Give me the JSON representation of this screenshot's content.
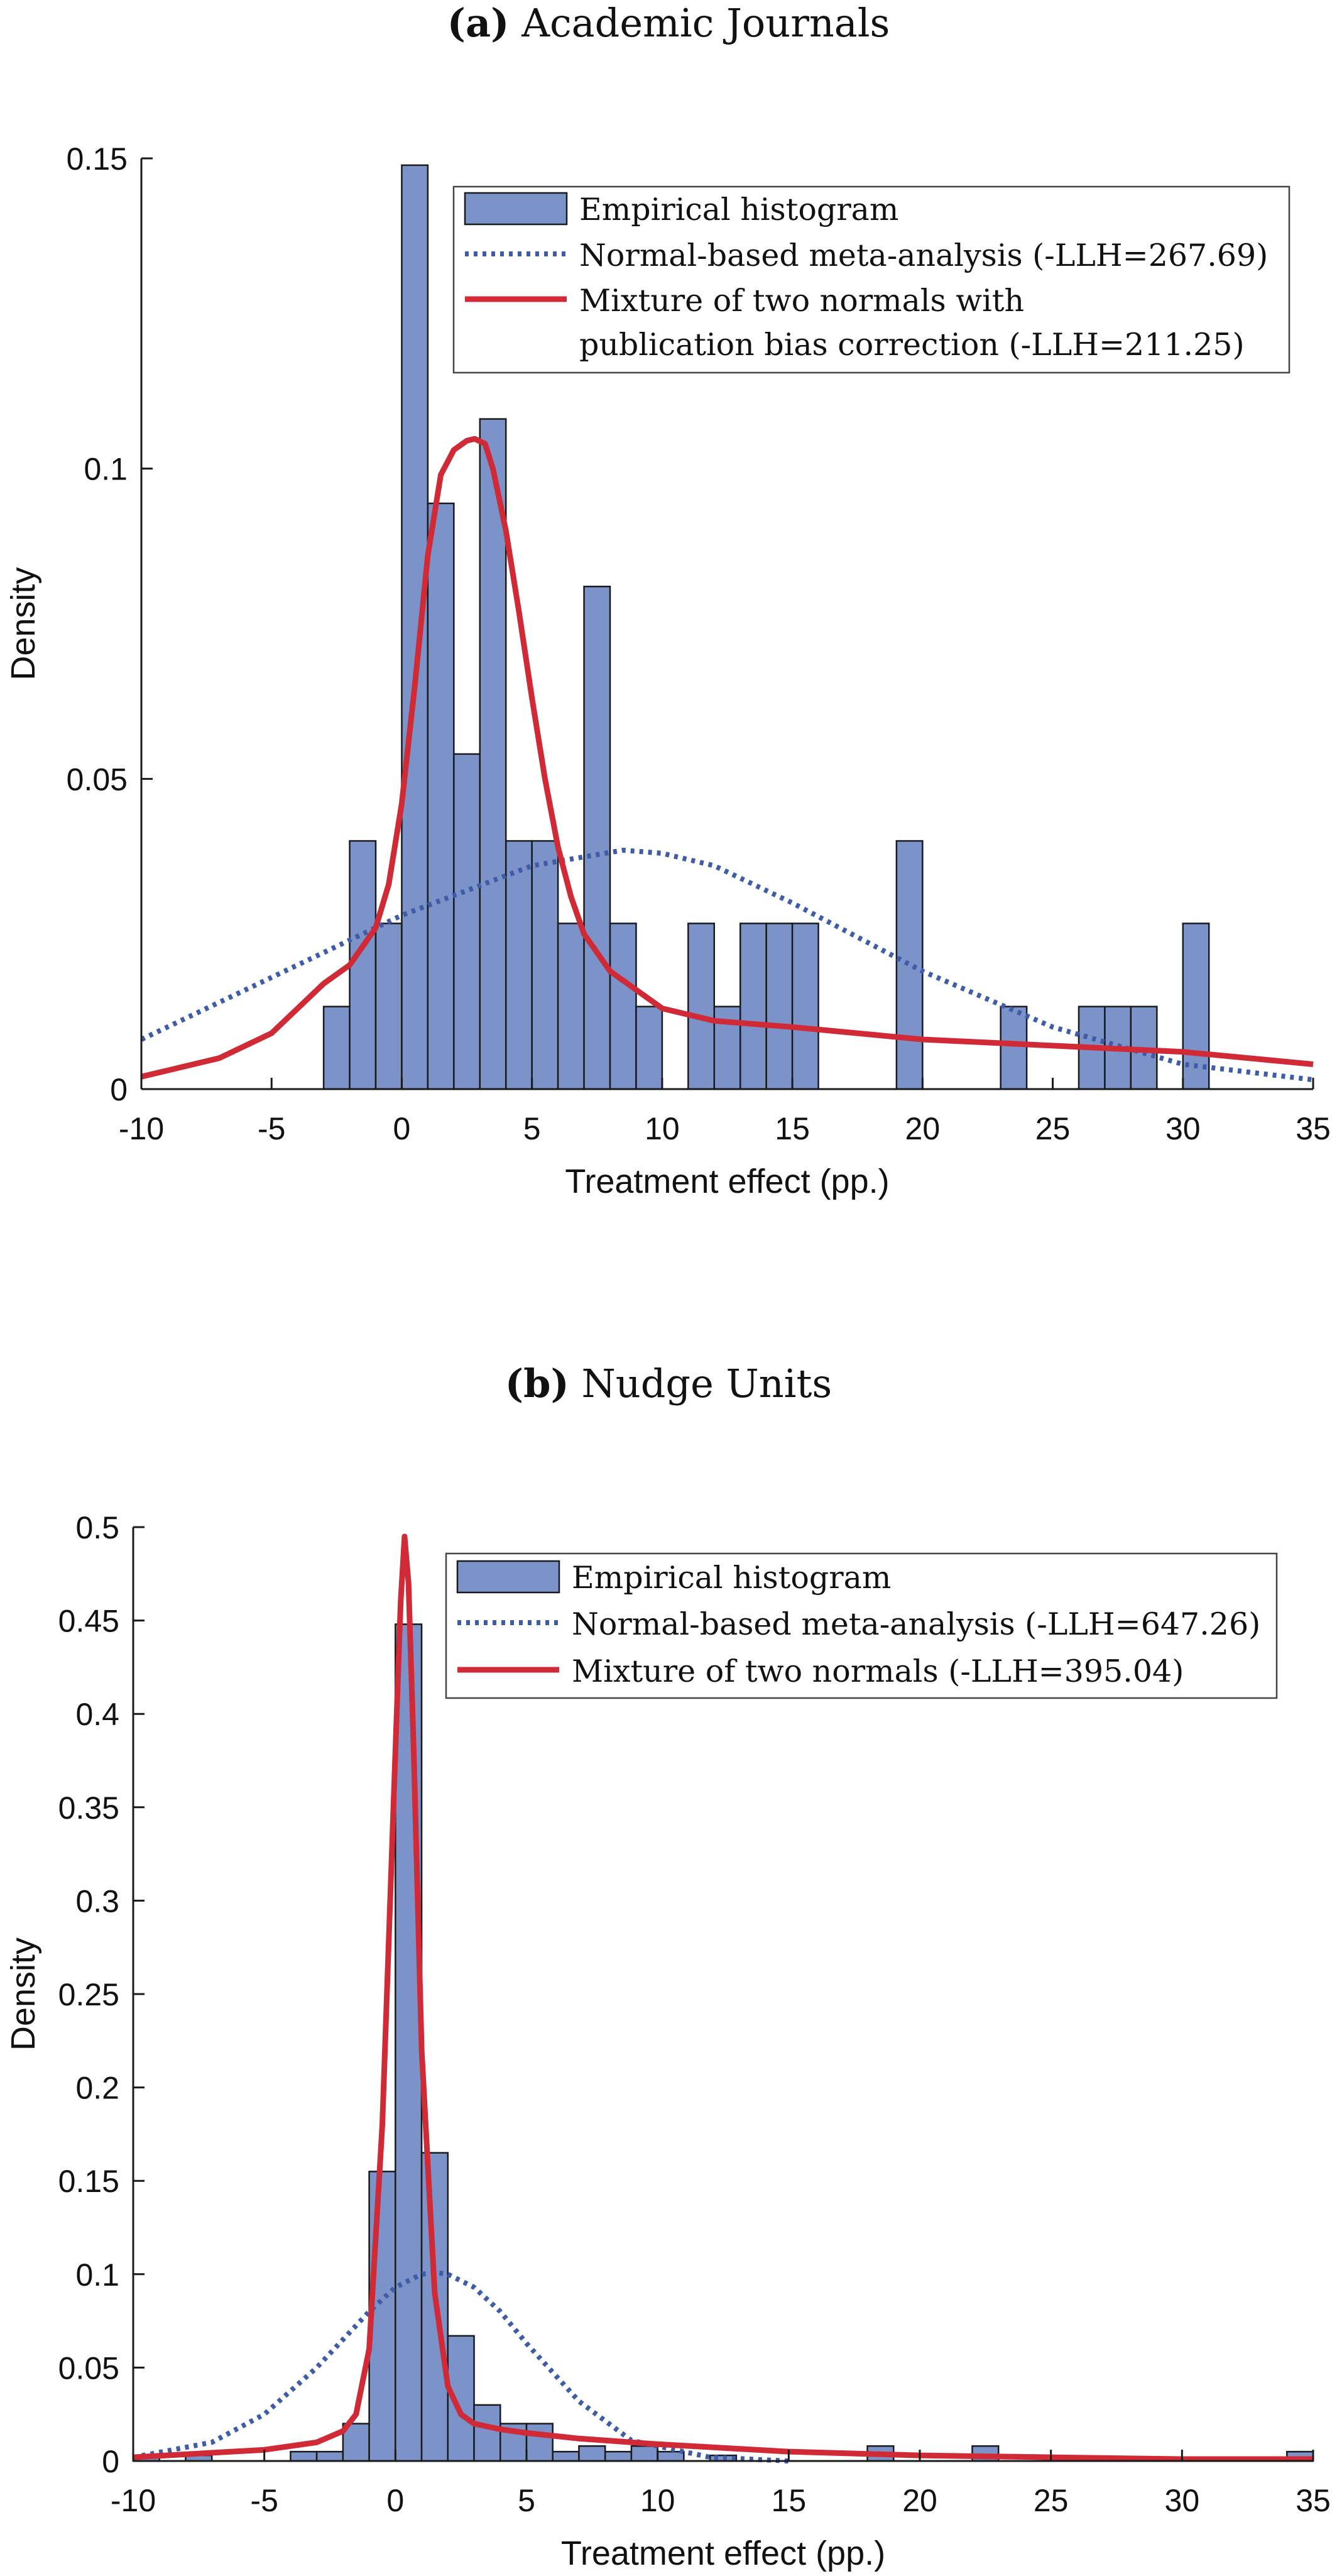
{
  "chart_data": [
    {
      "panel": "a",
      "type": "bar",
      "title_tag": "(a)",
      "title": "Academic Journals",
      "xlabel": "Treatment effect (pp.)",
      "ylabel": "Density",
      "xlim": [
        -10,
        35
      ],
      "ylim": [
        0,
        0.15
      ],
      "xticks": [
        -10,
        -5,
        0,
        5,
        10,
        15,
        20,
        25,
        30,
        35
      ],
      "xtick_labels": [
        "-10",
        "-5",
        "0",
        "5",
        "10",
        "15",
        "20",
        "25",
        "30",
        "35"
      ],
      "yticks": [
        0,
        0.05,
        0.1,
        0.15
      ],
      "ytick_labels": [
        "0",
        "0.05",
        "0.1",
        "0.15"
      ],
      "legend": [
        "Empirical histogram",
        "Normal-based meta-analysis (-LLH=267.69)",
        "Mixture of two normals with",
        "publication bias correction (-LLH=211.25)"
      ],
      "legend_position": "top-right",
      "colors": {
        "bars": "#7b93c9",
        "normal": "#3f5ca8",
        "mixture": "#d02a36"
      },
      "histogram": {
        "bin_width": 1,
        "bins": [
          {
            "x0": -3,
            "value": 0.0133
          },
          {
            "x0": -2,
            "value": 0.04
          },
          {
            "x0": -1,
            "value": 0.0267
          },
          {
            "x0": 0,
            "value": 0.1489
          },
          {
            "x0": 1,
            "value": 0.0944
          },
          {
            "x0": 2,
            "value": 0.054
          },
          {
            "x0": 3,
            "value": 0.108
          },
          {
            "x0": 4,
            "value": 0.04
          },
          {
            "x0": 5,
            "value": 0.04
          },
          {
            "x0": 6,
            "value": 0.0267
          },
          {
            "x0": 7,
            "value": 0.081
          },
          {
            "x0": 8,
            "value": 0.0267
          },
          {
            "x0": 9,
            "value": 0.0133
          },
          {
            "x0": 11,
            "value": 0.0267
          },
          {
            "x0": 12,
            "value": 0.0133
          },
          {
            "x0": 13,
            "value": 0.0267
          },
          {
            "x0": 14,
            "value": 0.0267
          },
          {
            "x0": 15,
            "value": 0.0267
          },
          {
            "x0": 19,
            "value": 0.04
          },
          {
            "x0": 23,
            "value": 0.0133
          },
          {
            "x0": 26,
            "value": 0.0133
          },
          {
            "x0": 27,
            "value": 0.0133
          },
          {
            "x0": 28,
            "value": 0.0133
          },
          {
            "x0": 30,
            "value": 0.0267
          }
        ]
      },
      "series": [
        {
          "name": "Normal-based meta-analysis (-LLH=267.69)",
          "style": "dotted",
          "x": [
            -10,
            -5,
            0,
            5,
            8.5,
            10,
            12,
            15,
            20,
            25,
            30,
            35
          ],
          "y": [
            0.008,
            0.018,
            0.028,
            0.036,
            0.0385,
            0.038,
            0.036,
            0.03,
            0.019,
            0.01,
            0.004,
            0.0015
          ]
        },
        {
          "name": "Mixture of two normals with publication bias correction (-LLH=211.25)",
          "style": "solid",
          "x": [
            -10,
            -7,
            -5,
            -4,
            -3,
            -2,
            -1,
            -0.5,
            0,
            0.5,
            1,
            1.5,
            2,
            2.5,
            2.8,
            3.2,
            3.5,
            4,
            4.5,
            5,
            5.5,
            6,
            6.5,
            7,
            7.5,
            8,
            9,
            10,
            12,
            15,
            20,
            25,
            30,
            35
          ],
          "y": [
            0.002,
            0.005,
            0.009,
            0.013,
            0.017,
            0.02,
            0.026,
            0.033,
            0.046,
            0.065,
            0.086,
            0.099,
            0.103,
            0.1045,
            0.1048,
            0.104,
            0.1,
            0.09,
            0.077,
            0.063,
            0.05,
            0.039,
            0.031,
            0.025,
            0.022,
            0.019,
            0.016,
            0.013,
            0.011,
            0.01,
            0.008,
            0.007,
            0.006,
            0.004
          ]
        }
      ]
    },
    {
      "panel": "b",
      "type": "bar",
      "title_tag": "(b)",
      "title": "Nudge Units",
      "xlabel": "Treatment effect (pp.)",
      "ylabel": "Density",
      "xlim": [
        -10,
        35
      ],
      "ylim": [
        0,
        0.5
      ],
      "xticks": [
        -10,
        -5,
        0,
        5,
        10,
        15,
        20,
        25,
        30,
        35
      ],
      "xtick_labels": [
        "-10",
        "-5",
        "0",
        "5",
        "10",
        "15",
        "20",
        "25",
        "30",
        "35"
      ],
      "yticks": [
        0,
        0.05,
        0.1,
        0.15,
        0.2,
        0.25,
        0.3,
        0.35,
        0.4,
        0.45,
        0.5
      ],
      "ytick_labels": [
        "0",
        "0.05",
        "0.1",
        "0.15",
        "0.2",
        "0.25",
        "0.3",
        "0.35",
        "0.4",
        "0.45",
        "0.5"
      ],
      "legend": [
        "Empirical histogram",
        "Normal-based meta-analysis (-LLH=647.26)",
        "Mixture of two normals (-LLH=395.04)"
      ],
      "legend_position": "top-right",
      "colors": {
        "bars": "#7b93c9",
        "normal": "#3f5ca8",
        "mixture": "#d02a36"
      },
      "histogram": {
        "bin_width": 1,
        "bins": [
          {
            "x0": -10,
            "value": 0.003
          },
          {
            "x0": -8,
            "value": 0.003
          },
          {
            "x0": -4,
            "value": 0.005
          },
          {
            "x0": -3,
            "value": 0.005
          },
          {
            "x0": -2,
            "value": 0.02
          },
          {
            "x0": -1,
            "value": 0.155
          },
          {
            "x0": 0,
            "value": 0.448
          },
          {
            "x0": 1,
            "value": 0.165
          },
          {
            "x0": 2,
            "value": 0.067
          },
          {
            "x0": 3,
            "value": 0.03
          },
          {
            "x0": 4,
            "value": 0.02
          },
          {
            "x0": 5,
            "value": 0.02
          },
          {
            "x0": 6,
            "value": 0.005
          },
          {
            "x0": 7,
            "value": 0.008
          },
          {
            "x0": 8,
            "value": 0.005
          },
          {
            "x0": 9,
            "value": 0.008
          },
          {
            "x0": 10,
            "value": 0.005
          },
          {
            "x0": 12,
            "value": 0.003
          },
          {
            "x0": 18,
            "value": 0.008
          },
          {
            "x0": 22,
            "value": 0.008
          },
          {
            "x0": 34,
            "value": 0.005
          }
        ]
      },
      "series": [
        {
          "name": "Normal-based meta-analysis (-LLH=647.26)",
          "style": "dotted",
          "x": [
            -10,
            -7,
            -5,
            -3,
            -1,
            0,
            1,
            1.5,
            2,
            3,
            4,
            5,
            7,
            9,
            12,
            15
          ],
          "y": [
            0.002,
            0.01,
            0.025,
            0.05,
            0.08,
            0.093,
            0.1,
            0.101,
            0.1,
            0.093,
            0.08,
            0.063,
            0.032,
            0.011,
            0.002,
            0.0
          ]
        },
        {
          "name": "Mixture of two normals (-LLH=395.04)",
          "style": "solid",
          "x": [
            -10,
            -5,
            -3,
            -2,
            -1.5,
            -1,
            -0.5,
            0,
            0.2,
            0.35,
            0.5,
            0.7,
            1,
            1.5,
            2,
            2.5,
            3,
            4,
            5,
            7,
            10,
            15,
            20,
            25,
            30,
            35
          ],
          "y": [
            0.002,
            0.006,
            0.01,
            0.016,
            0.025,
            0.06,
            0.18,
            0.38,
            0.46,
            0.495,
            0.47,
            0.38,
            0.22,
            0.09,
            0.04,
            0.025,
            0.02,
            0.017,
            0.015,
            0.012,
            0.009,
            0.005,
            0.003,
            0.002,
            0.001,
            0.001
          ]
        }
      ]
    }
  ]
}
